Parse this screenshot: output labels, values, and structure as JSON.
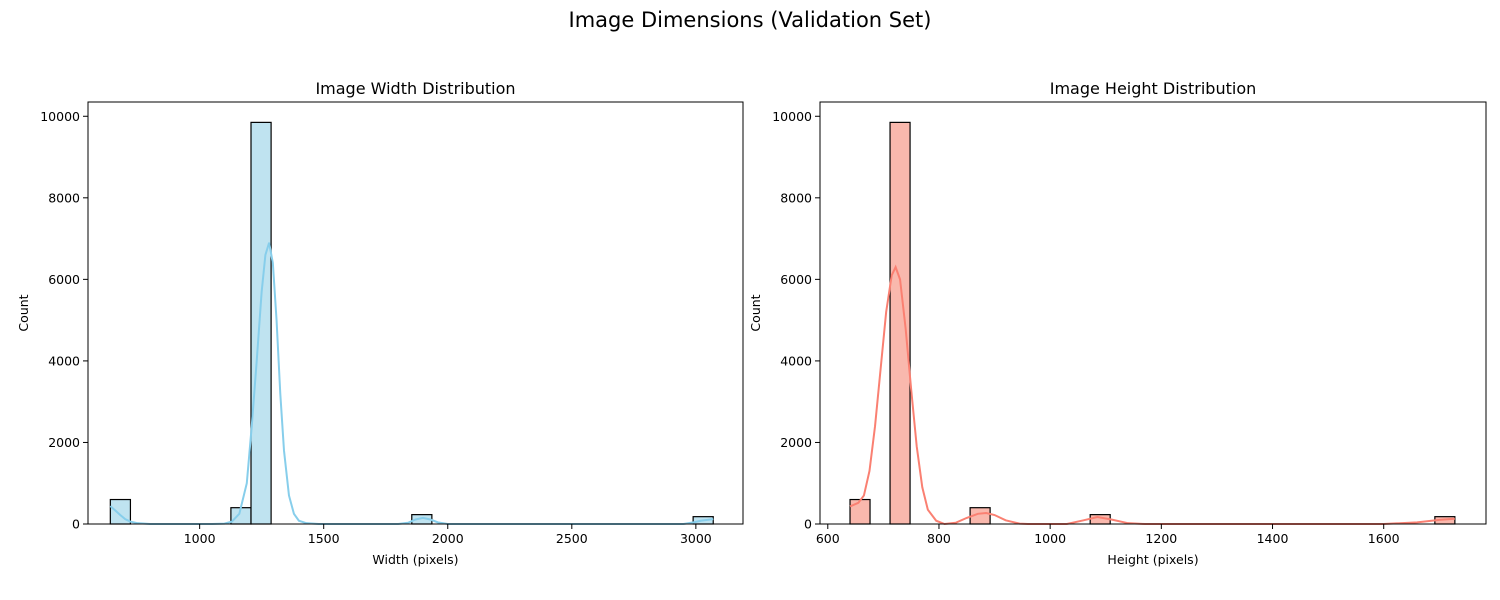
{
  "figure": {
    "title": "Image Dimensions (Validation Set)"
  },
  "chart_data": [
    {
      "type": "bar",
      "histogram": true,
      "title": "Image Width Distribution",
      "xlabel": "Width (pixels)",
      "ylabel": "Count",
      "xlim": [
        550,
        3190
      ],
      "ylim": [
        0,
        10350
      ],
      "xticks": [
        1000,
        1500,
        2000,
        2500,
        3000
      ],
      "xtick_labels": [
        "1000",
        "1500",
        "2000",
        "2500",
        "3000"
      ],
      "yticks": [
        0,
        2000,
        4000,
        6000,
        8000,
        10000
      ],
      "ytick_labels": [
        "0",
        "2000",
        "4000",
        "6000",
        "8000",
        "10000"
      ],
      "bin_width": 81,
      "bins": [
        {
          "x0": 640,
          "x1": 721,
          "count": 600
        },
        {
          "x0": 1126,
          "x1": 1207,
          "count": 400
        },
        {
          "x0": 1207,
          "x1": 1288,
          "count": 9850
        },
        {
          "x0": 1855,
          "x1": 1936,
          "count": 230
        },
        {
          "x0": 2989,
          "x1": 3070,
          "count": 180
        }
      ],
      "kde": [
        [
          640,
          440
        ],
        [
          660,
          330
        ],
        [
          680,
          220
        ],
        [
          700,
          120
        ],
        [
          720,
          60
        ],
        [
          750,
          20
        ],
        [
          800,
          0
        ],
        [
          1050,
          0
        ],
        [
          1100,
          10
        ],
        [
          1130,
          60
        ],
        [
          1160,
          250
        ],
        [
          1190,
          1000
        ],
        [
          1210,
          2400
        ],
        [
          1230,
          4000
        ],
        [
          1250,
          5700
        ],
        [
          1265,
          6600
        ],
        [
          1280,
          6900
        ],
        [
          1295,
          6400
        ],
        [
          1310,
          5000
        ],
        [
          1325,
          3200
        ],
        [
          1340,
          1800
        ],
        [
          1360,
          700
        ],
        [
          1380,
          250
        ],
        [
          1400,
          80
        ],
        [
          1430,
          20
        ],
        [
          1480,
          0
        ],
        [
          1800,
          0
        ],
        [
          1840,
          30
        ],
        [
          1870,
          110
        ],
        [
          1900,
          150
        ],
        [
          1930,
          110
        ],
        [
          1960,
          40
        ],
        [
          2000,
          0
        ],
        [
          2950,
          0
        ],
        [
          2990,
          40
        ],
        [
          3020,
          80
        ],
        [
          3070,
          120
        ]
      ],
      "colors": {
        "fill": "#bfe3f0",
        "edge": "#000000",
        "line": "#87ceeb"
      }
    },
    {
      "type": "bar",
      "histogram": true,
      "title": "Image Height Distribution",
      "xlabel": "Height (pixels)",
      "ylabel": "Count",
      "xlim": [
        586,
        1784
      ],
      "ylim": [
        0,
        10350
      ],
      "xticks": [
        600,
        800,
        1000,
        1200,
        1400,
        1600
      ],
      "xtick_labels": [
        "600",
        "800",
        "1000",
        "1200",
        "1400",
        "1600"
      ],
      "yticks": [
        0,
        2000,
        4000,
        6000,
        8000,
        10000
      ],
      "ytick_labels": [
        "0",
        "2000",
        "4000",
        "6000",
        "8000",
        "10000"
      ],
      "bin_width": 36,
      "bins": [
        {
          "x0": 640,
          "x1": 676,
          "count": 600
        },
        {
          "x0": 712,
          "x1": 748,
          "count": 9850
        },
        {
          "x0": 856,
          "x1": 892,
          "count": 400
        },
        {
          "x0": 1072,
          "x1": 1108,
          "count": 230
        },
        {
          "x0": 1692,
          "x1": 1728,
          "count": 180
        }
      ],
      "kde": [
        [
          640,
          430
        ],
        [
          655,
          520
        ],
        [
          665,
          700
        ],
        [
          675,
          1300
        ],
        [
          685,
          2400
        ],
        [
          695,
          3800
        ],
        [
          705,
          5200
        ],
        [
          715,
          6100
        ],
        [
          722,
          6300
        ],
        [
          730,
          6000
        ],
        [
          740,
          4800
        ],
        [
          750,
          3300
        ],
        [
          760,
          1900
        ],
        [
          770,
          900
        ],
        [
          780,
          350
        ],
        [
          795,
          80
        ],
        [
          810,
          0
        ],
        [
          830,
          30
        ],
        [
          850,
          150
        ],
        [
          870,
          250
        ],
        [
          885,
          270
        ],
        [
          900,
          220
        ],
        [
          920,
          90
        ],
        [
          945,
          10
        ],
        [
          960,
          0
        ],
        [
          1030,
          0
        ],
        [
          1060,
          90
        ],
        [
          1085,
          170
        ],
        [
          1110,
          110
        ],
        [
          1140,
          20
        ],
        [
          1170,
          0
        ],
        [
          1600,
          0
        ],
        [
          1660,
          40
        ],
        [
          1700,
          100
        ],
        [
          1728,
          130
        ]
      ],
      "colors": {
        "fill": "#f9b8ad",
        "edge": "#000000",
        "line": "#fa8072"
      }
    }
  ]
}
